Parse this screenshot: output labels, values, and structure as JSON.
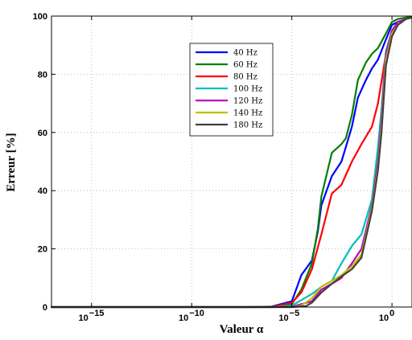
{
  "chart_data": {
    "type": "line",
    "xlabel": "Valeur α",
    "ylabel": "Erreur [%]",
    "x_scale": "log",
    "xlim": [
      1e-17,
      10
    ],
    "ylim": [
      0,
      100
    ],
    "x_ticks": [
      {
        "value": 1e-15,
        "base": "10",
        "exp": "−15"
      },
      {
        "value": 1e-10,
        "base": "10",
        "exp": "−10"
      },
      {
        "value": 1e-05,
        "base": "10",
        "exp": "−5"
      },
      {
        "value": 1,
        "base": "10",
        "exp": "0"
      }
    ],
    "y_ticks": [
      "0",
      "20",
      "40",
      "60",
      "80",
      "100"
    ],
    "grid": true,
    "legend_position": "top-center",
    "series": [
      {
        "name": "40 Hz",
        "color": "#0000ff",
        "x": [
          1e-17,
          1e-07,
          1e-06,
          1e-05,
          3e-05,
          0.0001,
          0.0002,
          0.0003,
          0.001,
          0.003,
          0.005,
          0.01,
          0.02,
          0.05,
          0.1,
          0.2,
          0.5,
          1,
          2,
          5,
          10
        ],
        "y": [
          0,
          0,
          0.2,
          2,
          11,
          16,
          26,
          35,
          45,
          50,
          55,
          62,
          72,
          78,
          82,
          85,
          92,
          97,
          98,
          99,
          99.5
        ]
      },
      {
        "name": "60 Hz",
        "color": "#008000",
        "x": [
          1e-17,
          1e-07,
          1e-06,
          1e-05,
          3e-05,
          0.0001,
          0.0002,
          0.0003,
          0.001,
          0.003,
          0.005,
          0.01,
          0.02,
          0.05,
          0.1,
          0.2,
          0.5,
          1,
          2,
          5,
          10
        ],
        "y": [
          0,
          0,
          0.1,
          1,
          6,
          15,
          27,
          38,
          53,
          56,
          58,
          66,
          78,
          84,
          87,
          89,
          94,
          98,
          99,
          99.5,
          99.7
        ]
      },
      {
        "name": "80 Hz",
        "color": "#ff0000",
        "x": [
          1e-17,
          1e-06,
          1e-05,
          3e-05,
          0.0001,
          0.0003,
          0.001,
          0.003,
          0.01,
          0.03,
          0.1,
          0.2,
          0.5,
          1,
          2,
          5,
          10
        ],
        "y": [
          0,
          0,
          1.5,
          5,
          13,
          25,
          39,
          42,
          50,
          56,
          62,
          70,
          87,
          95,
          98,
          99,
          99.5
        ]
      },
      {
        "name": "100 Hz",
        "color": "#00bfbf",
        "x": [
          1e-17,
          1e-06,
          1e-05,
          0.0001,
          0.0003,
          0.001,
          0.003,
          0.01,
          0.03,
          0.1,
          0.2,
          0.3,
          0.5,
          1,
          2,
          5,
          10
        ],
        "y": [
          0,
          0,
          0.5,
          4.5,
          7,
          9,
          15,
          21,
          25,
          37,
          55,
          68,
          88,
          95,
          98,
          99,
          99.5
        ]
      },
      {
        "name": "120 Hz",
        "color": "#bf00bf",
        "x": [
          1e-17,
          1e-06,
          1e-05,
          0.0001,
          0.0003,
          0.001,
          0.003,
          0.01,
          0.03,
          0.1,
          0.2,
          0.3,
          0.5,
          1,
          2,
          5,
          10
        ],
        "y": [
          0,
          0,
          0.1,
          2,
          6,
          8,
          10,
          15,
          20,
          35,
          50,
          65,
          87,
          95,
          98,
          99,
          99.5
        ]
      },
      {
        "name": "140 Hz",
        "color": "#bfbf00",
        "x": [
          1e-17,
          1e-05,
          3e-05,
          0.0001,
          0.0003,
          0.001,
          0.003,
          0.01,
          0.03,
          0.1,
          0.2,
          0.3,
          0.5,
          1,
          2,
          5,
          10
        ],
        "y": [
          0,
          0,
          0.5,
          3,
          7,
          9,
          11,
          14,
          18,
          34,
          48,
          62,
          85,
          94,
          97,
          99,
          99.5
        ]
      },
      {
        "name": "180 Hz",
        "color": "#404040",
        "x": [
          1e-17,
          1e-05,
          5e-05,
          0.0001,
          0.0003,
          0.001,
          0.003,
          0.01,
          0.03,
          0.1,
          0.2,
          0.3,
          0.5,
          1,
          2,
          5,
          10
        ],
        "y": [
          0,
          0,
          0.3,
          1.5,
          5,
          8,
          10.5,
          13,
          17,
          33,
          47,
          60,
          83,
          93,
          97,
          99,
          99.5
        ]
      }
    ]
  }
}
